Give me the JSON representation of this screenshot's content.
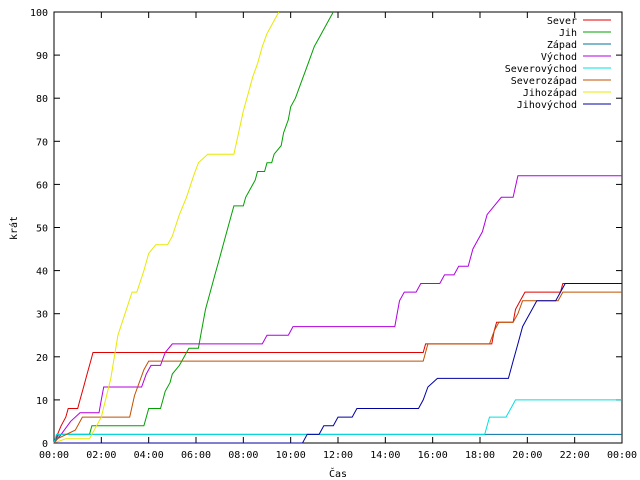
{
  "chart_data": {
    "type": "line",
    "title": "",
    "xlabel": "Čas",
    "ylabel": "krát",
    "xlim": [
      0,
      24
    ],
    "ylim": [
      0,
      100
    ],
    "grid": false,
    "legend_position": "top-right",
    "x_tick_labels": [
      "00:00",
      "02:00",
      "04:00",
      "06:00",
      "08:00",
      "10:00",
      "12:00",
      "14:00",
      "16:00",
      "18:00",
      "20:00",
      "22:00",
      "00:00"
    ],
    "y_tick_labels": [
      "0",
      "10",
      "20",
      "30",
      "40",
      "50",
      "60",
      "70",
      "80",
      "90",
      "100"
    ],
    "series": [
      {
        "name": "Sever",
        "color": "#e00000",
        "points": [
          [
            0,
            0
          ],
          [
            0.15,
            2
          ],
          [
            0.3,
            4
          ],
          [
            0.5,
            6
          ],
          [
            0.6,
            8
          ],
          [
            1.0,
            8
          ],
          [
            1.1,
            10
          ],
          [
            1.25,
            13
          ],
          [
            1.4,
            16
          ],
          [
            1.55,
            19
          ],
          [
            1.65,
            21
          ],
          [
            15.6,
            21
          ],
          [
            15.7,
            23
          ],
          [
            18.5,
            23
          ],
          [
            18.6,
            26
          ],
          [
            18.7,
            28
          ],
          [
            19.4,
            28
          ],
          [
            19.5,
            31
          ],
          [
            19.7,
            33
          ],
          [
            19.9,
            35
          ],
          [
            21.4,
            35
          ],
          [
            21.5,
            37
          ],
          [
            24,
            37
          ]
        ]
      },
      {
        "name": "Jih",
        "color": "#00a000",
        "points": [
          [
            0,
            0
          ],
          [
            0.3,
            2
          ],
          [
            1.5,
            2
          ],
          [
            1.6,
            4
          ],
          [
            3.8,
            4
          ],
          [
            3.9,
            6
          ],
          [
            4.0,
            8
          ],
          [
            4.5,
            8
          ],
          [
            4.6,
            10
          ],
          [
            4.7,
            12
          ],
          [
            4.9,
            14
          ],
          [
            5.0,
            16
          ],
          [
            5.3,
            18
          ],
          [
            5.5,
            20
          ],
          [
            5.7,
            22
          ],
          [
            6.1,
            22
          ],
          [
            6.2,
            25
          ],
          [
            6.3,
            28
          ],
          [
            6.4,
            31
          ],
          [
            6.6,
            35
          ],
          [
            6.8,
            39
          ],
          [
            7.0,
            43
          ],
          [
            7.2,
            47
          ],
          [
            7.4,
            51
          ],
          [
            7.6,
            55
          ],
          [
            8.0,
            55
          ],
          [
            8.1,
            57
          ],
          [
            8.3,
            59
          ],
          [
            8.5,
            61
          ],
          [
            8.6,
            63
          ],
          [
            8.9,
            63
          ],
          [
            9.0,
            65
          ],
          [
            9.2,
            65
          ],
          [
            9.3,
            67
          ],
          [
            9.6,
            69
          ],
          [
            9.7,
            72
          ],
          [
            9.9,
            75
          ],
          [
            10.0,
            78
          ],
          [
            10.2,
            80
          ],
          [
            10.4,
            83
          ],
          [
            10.6,
            86
          ],
          [
            10.8,
            89
          ],
          [
            11.0,
            92
          ],
          [
            11.2,
            94
          ],
          [
            11.4,
            96
          ],
          [
            11.6,
            98
          ],
          [
            11.8,
            100
          ]
        ]
      },
      {
        "name": "Západ",
        "color": "#0070a0",
        "points": [
          [
            0,
            0
          ],
          [
            0.2,
            2
          ],
          [
            24,
            2
          ]
        ]
      },
      {
        "name": "Východ",
        "color": "#b000e0",
        "points": [
          [
            0,
            0
          ],
          [
            0.3,
            2
          ],
          [
            0.7,
            5
          ],
          [
            1.1,
            7
          ],
          [
            1.9,
            7
          ],
          [
            2.0,
            10
          ],
          [
            2.1,
            13
          ],
          [
            3.7,
            13
          ],
          [
            3.9,
            16
          ],
          [
            4.1,
            18
          ],
          [
            4.5,
            18
          ],
          [
            4.7,
            21
          ],
          [
            5.0,
            23
          ],
          [
            8.8,
            23
          ],
          [
            9.0,
            25
          ],
          [
            9.9,
            25
          ],
          [
            10.1,
            27
          ],
          [
            14.4,
            27
          ],
          [
            14.6,
            33
          ],
          [
            14.8,
            35
          ],
          [
            15.3,
            35
          ],
          [
            15.5,
            37
          ],
          [
            16.3,
            37
          ],
          [
            16.5,
            39
          ],
          [
            16.9,
            39
          ],
          [
            17.1,
            41
          ],
          [
            17.5,
            41
          ],
          [
            17.7,
            45
          ],
          [
            17.9,
            47
          ],
          [
            18.1,
            49
          ],
          [
            18.3,
            53
          ],
          [
            18.6,
            55
          ],
          [
            18.9,
            57
          ],
          [
            19.4,
            57
          ],
          [
            19.6,
            62
          ],
          [
            24,
            62
          ]
        ]
      },
      {
        "name": "Severovýchod",
        "color": "#00e0e0",
        "points": [
          [
            0,
            0
          ],
          [
            0.1,
            2
          ],
          [
            18.2,
            2
          ],
          [
            18.4,
            6
          ],
          [
            19.1,
            6
          ],
          [
            19.3,
            8
          ],
          [
            19.5,
            10
          ],
          [
            24,
            10
          ]
        ]
      },
      {
        "name": "Severozápad",
        "color": "#c05000",
        "points": [
          [
            0,
            0
          ],
          [
            0.15,
            1
          ],
          [
            0.9,
            3
          ],
          [
            1.2,
            6
          ],
          [
            3.2,
            6
          ],
          [
            3.4,
            11
          ],
          [
            3.6,
            14
          ],
          [
            3.8,
            17
          ],
          [
            4.0,
            19
          ],
          [
            15.6,
            19
          ],
          [
            15.8,
            23
          ],
          [
            18.4,
            23
          ],
          [
            18.6,
            26
          ],
          [
            18.8,
            28
          ],
          [
            19.4,
            28
          ],
          [
            19.6,
            30
          ],
          [
            19.8,
            33
          ],
          [
            21.3,
            33
          ],
          [
            21.5,
            35
          ],
          [
            24,
            35
          ]
        ]
      },
      {
        "name": "Jihozápad",
        "color": "#e8e800",
        "points": [
          [
            0,
            0
          ],
          [
            0.5,
            1
          ],
          [
            1.5,
            1
          ],
          [
            1.7,
            3
          ],
          [
            2.0,
            6
          ],
          [
            2.4,
            15
          ],
          [
            2.7,
            25
          ],
          [
            3.0,
            30
          ],
          [
            3.3,
            35
          ],
          [
            3.5,
            35
          ],
          [
            3.8,
            40
          ],
          [
            4.0,
            44
          ],
          [
            4.3,
            46
          ],
          [
            4.8,
            46
          ],
          [
            5.0,
            48
          ],
          [
            5.3,
            53
          ],
          [
            5.6,
            57
          ],
          [
            5.9,
            62
          ],
          [
            6.1,
            65
          ],
          [
            6.5,
            67
          ],
          [
            7.6,
            67
          ],
          [
            7.8,
            72
          ],
          [
            8.0,
            77
          ],
          [
            8.2,
            81
          ],
          [
            8.4,
            85
          ],
          [
            8.6,
            88
          ],
          [
            8.8,
            92
          ],
          [
            9.0,
            95
          ],
          [
            9.3,
            98
          ],
          [
            9.5,
            100
          ]
        ]
      },
      {
        "name": "Jihovýchod",
        "color": "#0000a0",
        "points": [
          [
            0,
            0
          ],
          [
            10.5,
            0
          ],
          [
            10.7,
            2
          ],
          [
            11.2,
            2
          ],
          [
            11.4,
            4
          ],
          [
            11.8,
            4
          ],
          [
            12.0,
            6
          ],
          [
            12.6,
            6
          ],
          [
            12.8,
            8
          ],
          [
            15.4,
            8
          ],
          [
            15.6,
            10
          ],
          [
            15.8,
            13
          ],
          [
            16.2,
            15
          ],
          [
            19.2,
            15
          ],
          [
            19.4,
            19
          ],
          [
            19.6,
            23
          ],
          [
            19.8,
            27
          ],
          [
            20.0,
            29
          ],
          [
            20.2,
            31
          ],
          [
            20.4,
            33
          ],
          [
            21.2,
            33
          ],
          [
            21.4,
            35
          ],
          [
            21.6,
            37
          ],
          [
            24,
            37
          ]
        ]
      }
    ]
  }
}
